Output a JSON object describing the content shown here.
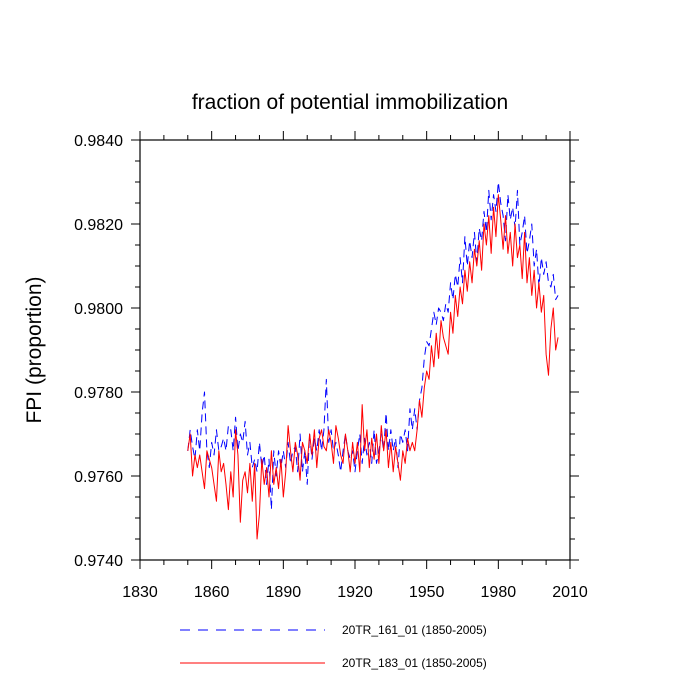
{
  "chart_data": {
    "type": "line",
    "title": "fraction of potential immobilization",
    "xlabel": "",
    "ylabel": "FPI  (proportion)",
    "xlim": [
      1830,
      2010
    ],
    "ylim": [
      0.974,
      0.984
    ],
    "xticks": [
      1830,
      1860,
      1890,
      1920,
      1950,
      1980,
      2010
    ],
    "xtick_labels": [
      "1830",
      "1860",
      "1890",
      "1920",
      "1950",
      "1980",
      "2010"
    ],
    "yticks": [
      0.974,
      0.976,
      0.978,
      0.98,
      0.982,
      0.984
    ],
    "ytick_labels": [
      "0.9740",
      "0.9760",
      "0.9780",
      "0.9800",
      "0.9820",
      "0.9840"
    ],
    "x_minor_step": 10,
    "y_minor_step": 0.0005,
    "legend_position": "bottom",
    "series": [
      {
        "name": "20TR_161_01 (1850-2005)",
        "color": "#0000ff",
        "dash": "dashed",
        "x_start": 1850,
        "values": [
          0.9766,
          0.9771,
          0.9767,
          0.9764,
          0.9771,
          0.9766,
          0.9775,
          0.978,
          0.9766,
          0.9762,
          0.9768,
          0.9765,
          0.9771,
          0.9766,
          0.9767,
          0.9769,
          0.9766,
          0.9772,
          0.9771,
          0.9766,
          0.9774,
          0.9766,
          0.977,
          0.9768,
          0.9773,
          0.9765,
          0.9768,
          0.9762,
          0.9764,
          0.9761,
          0.9768,
          0.9762,
          0.9765,
          0.9758,
          0.9764,
          0.9752,
          0.9766,
          0.976,
          0.9766,
          0.9762,
          0.9766,
          0.9762,
          0.9768,
          0.9763,
          0.9766,
          0.9767,
          0.9761,
          0.977,
          0.9761,
          0.9766,
          0.9758,
          0.977,
          0.9764,
          0.9769,
          0.9766,
          0.9771,
          0.9766,
          0.9771,
          0.9783,
          0.9768,
          0.9771,
          0.9766,
          0.9768,
          0.9765,
          0.9761,
          0.9766,
          0.977,
          0.9766,
          0.9764,
          0.9766,
          0.9761,
          0.9766,
          0.977,
          0.9763,
          0.9769,
          0.9765,
          0.9768,
          0.9763,
          0.9771,
          0.9763,
          0.9766,
          0.977,
          0.9766,
          0.9775,
          0.9766,
          0.9771,
          0.9766,
          0.9769,
          0.9762,
          0.977,
          0.9768,
          0.9771,
          0.9766,
          0.9776,
          0.9771,
          0.9776,
          0.9771,
          0.9778,
          0.9781,
          0.9788,
          0.9792,
          0.9791,
          0.9795,
          0.9799,
          0.9796,
          0.98,
          0.9799,
          0.9797,
          0.9801,
          0.9799,
          0.9806,
          0.9802,
          0.9808,
          0.9805,
          0.9812,
          0.9806,
          0.9817,
          0.981,
          0.9816,
          0.9812,
          0.9818,
          0.9811,
          0.9819,
          0.9816,
          0.9823,
          0.9818,
          0.9828,
          0.9821,
          0.9827,
          0.9823,
          0.983,
          0.9825,
          0.9822,
          0.9816,
          0.9827,
          0.9821,
          0.9824,
          0.9819,
          0.9828,
          0.9815,
          0.9818,
          0.9822,
          0.9813,
          0.9816,
          0.982,
          0.981,
          0.9814,
          0.9805,
          0.9812,
          0.9808,
          0.9811,
          0.9806,
          0.9805,
          0.9808,
          0.9802,
          0.9803
        ]
      },
      {
        "name": "20TR_183_01 (1850-2005)",
        "color": "#ff0000",
        "dash": "solid",
        "x_start": 1850,
        "values": [
          0.9766,
          0.977,
          0.976,
          0.9765,
          0.9762,
          0.9765,
          0.9761,
          0.9757,
          0.9766,
          0.9764,
          0.9762,
          0.9758,
          0.9754,
          0.9766,
          0.9761,
          0.9763,
          0.9758,
          0.9752,
          0.9761,
          0.9755,
          0.9771,
          0.9765,
          0.9749,
          0.9759,
          0.9761,
          0.9756,
          0.9763,
          0.9754,
          0.9763,
          0.9745,
          0.9751,
          0.9764,
          0.9758,
          0.9762,
          0.9755,
          0.9766,
          0.9758,
          0.9762,
          0.9757,
          0.9764,
          0.9755,
          0.9761,
          0.9772,
          0.9766,
          0.9761,
          0.9768,
          0.9765,
          0.9759,
          0.9768,
          0.9766,
          0.9763,
          0.977,
          0.9765,
          0.9771,
          0.9762,
          0.9769,
          0.9771,
          0.9767,
          0.9766,
          0.9771,
          0.9768,
          0.9763,
          0.9772,
          0.9769,
          0.9765,
          0.9763,
          0.977,
          0.9766,
          0.9761,
          0.9768,
          0.9763,
          0.9768,
          0.9761,
          0.9777,
          0.9766,
          0.9771,
          0.9762,
          0.9769,
          0.9764,
          0.977,
          0.9763,
          0.9772,
          0.9766,
          0.9771,
          0.9762,
          0.9768,
          0.9761,
          0.9767,
          0.9763,
          0.9759,
          0.9766,
          0.9763,
          0.9769,
          0.9766,
          0.9768,
          0.9766,
          0.9771,
          0.9778,
          0.9774,
          0.9781,
          0.9785,
          0.9783,
          0.9791,
          0.9786,
          0.9794,
          0.9788,
          0.9797,
          0.9793,
          0.9791,
          0.9789,
          0.9799,
          0.9794,
          0.9803,
          0.9798,
          0.9805,
          0.9801,
          0.9809,
          0.9804,
          0.9811,
          0.9806,
          0.9814,
          0.981,
          0.9816,
          0.9809,
          0.982,
          0.9815,
          0.9822,
          0.9813,
          0.9824,
          0.9817,
          0.9827,
          0.9821,
          0.9814,
          0.9822,
          0.9813,
          0.9818,
          0.981,
          0.982,
          0.9812,
          0.9815,
          0.9807,
          0.9818,
          0.9806,
          0.9812,
          0.9803,
          0.9809,
          0.98,
          0.9806,
          0.9799,
          0.9803,
          0.9789,
          0.9784,
          0.9795,
          0.98,
          0.979,
          0.9793
        ]
      }
    ]
  }
}
